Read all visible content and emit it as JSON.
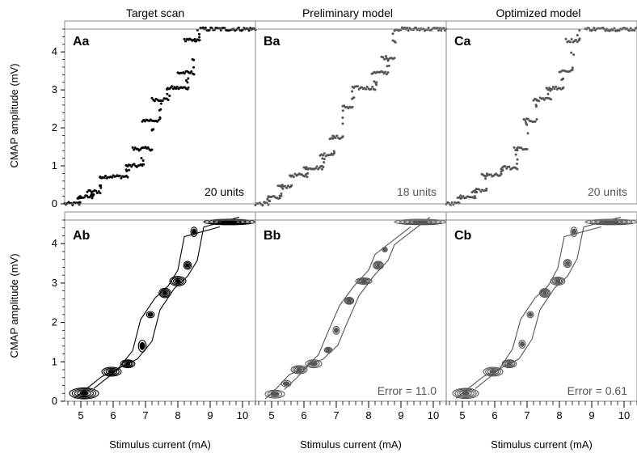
{
  "columns": [
    {
      "title": "Target scan",
      "scatter_label": "Aa",
      "contour_label": "Ab",
      "units_note": "20 units",
      "error_note": "",
      "color": "#000000"
    },
    {
      "title": "Preliminary model",
      "scatter_label": "Ba",
      "contour_label": "Bb",
      "units_note": "18 units",
      "error_note": "Error = 11.0",
      "color": "#555555"
    },
    {
      "title": "Optimized model",
      "scatter_label": "Ca",
      "contour_label": "Cb",
      "units_note": "20 units",
      "error_note": "Error = 0.61",
      "color": "#555555"
    }
  ],
  "axes": {
    "ylabel": "CMAP amplitude (mV)",
    "xlabel": "Stimulus current (mA)",
    "xlim": [
      4.5,
      10.4
    ],
    "ylim": [
      0,
      4.6
    ],
    "xticks": [
      5,
      6,
      7,
      8,
      9,
      10
    ],
    "yticks": [
      0,
      1,
      2,
      3,
      4
    ]
  },
  "chart_data": [
    {
      "type": "scatter",
      "panel": "Aa",
      "title": "Target scan",
      "xlabel": "",
      "ylabel": "CMAP amplitude (mV)",
      "xlim": [
        4.5,
        10.4
      ],
      "ylim": [
        0,
        4.6
      ],
      "steps": [
        {
          "x_start": 4.5,
          "x_end": 4.95,
          "y": 0.0
        },
        {
          "x_start": 4.9,
          "x_end": 5.35,
          "y": 0.18
        },
        {
          "x_start": 5.2,
          "x_end": 5.6,
          "y": 0.32
        },
        {
          "x_start": 5.6,
          "x_end": 6.45,
          "y": 0.72
        },
        {
          "x_start": 6.4,
          "x_end": 6.9,
          "y": 1.0
        },
        {
          "x_start": 6.6,
          "x_end": 7.2,
          "y": 1.45
        },
        {
          "x_start": 6.9,
          "x_end": 7.45,
          "y": 2.2
        },
        {
          "x_start": 7.2,
          "x_end": 7.7,
          "y": 2.75
        },
        {
          "x_start": 7.7,
          "x_end": 8.3,
          "y": 3.05
        },
        {
          "x_start": 8.0,
          "x_end": 8.5,
          "y": 3.45
        },
        {
          "x_start": 8.2,
          "x_end": 8.65,
          "y": 4.3
        },
        {
          "x_start": 8.7,
          "x_end": 10.4,
          "y": 4.6
        }
      ],
      "annotation": "20 units"
    },
    {
      "type": "scatter",
      "panel": "Ba",
      "title": "Preliminary model",
      "xlabel": "",
      "ylabel": "",
      "xlim": [
        4.5,
        10.4
      ],
      "ylim": [
        0,
        4.6
      ],
      "steps": [
        {
          "x_start": 4.5,
          "x_end": 4.9,
          "y": 0.0
        },
        {
          "x_start": 4.9,
          "x_end": 5.3,
          "y": 0.18
        },
        {
          "x_start": 5.2,
          "x_end": 5.6,
          "y": 0.45
        },
        {
          "x_start": 5.6,
          "x_end": 6.1,
          "y": 0.75
        },
        {
          "x_start": 6.0,
          "x_end": 6.6,
          "y": 0.95
        },
        {
          "x_start": 6.5,
          "x_end": 6.9,
          "y": 1.3
        },
        {
          "x_start": 6.8,
          "x_end": 7.2,
          "y": 1.75
        },
        {
          "x_start": 7.2,
          "x_end": 7.5,
          "y": 2.55
        },
        {
          "x_start": 7.5,
          "x_end": 8.2,
          "y": 3.05
        },
        {
          "x_start": 8.1,
          "x_end": 8.6,
          "y": 3.45
        },
        {
          "x_start": 8.4,
          "x_end": 8.8,
          "y": 3.85
        },
        {
          "x_start": 8.8,
          "x_end": 10.4,
          "y": 4.6
        }
      ],
      "annotation": "18 units"
    },
    {
      "type": "scatter",
      "panel": "Ca",
      "title": "Optimized model",
      "xlabel": "",
      "ylabel": "",
      "xlim": [
        4.5,
        10.4
      ],
      "ylim": [
        0,
        4.6
      ],
      "steps": [
        {
          "x_start": 4.5,
          "x_end": 4.9,
          "y": 0.0
        },
        {
          "x_start": 4.9,
          "x_end": 5.4,
          "y": 0.18
        },
        {
          "x_start": 5.3,
          "x_end": 5.7,
          "y": 0.35
        },
        {
          "x_start": 5.6,
          "x_end": 6.2,
          "y": 0.75
        },
        {
          "x_start": 6.2,
          "x_end": 6.7,
          "y": 0.95
        },
        {
          "x_start": 6.6,
          "x_end": 7.0,
          "y": 1.45
        },
        {
          "x_start": 6.9,
          "x_end": 7.3,
          "y": 2.2
        },
        {
          "x_start": 7.2,
          "x_end": 7.7,
          "y": 2.75
        },
        {
          "x_start": 7.6,
          "x_end": 8.1,
          "y": 3.05
        },
        {
          "x_start": 8.0,
          "x_end": 8.4,
          "y": 3.5
        },
        {
          "x_start": 8.2,
          "x_end": 8.6,
          "y": 4.3
        },
        {
          "x_start": 8.8,
          "x_end": 10.4,
          "y": 4.6
        }
      ],
      "annotation": "20 units"
    },
    {
      "type": "heatmap",
      "panel": "Ab",
      "xlabel": "Stimulus current (mA)",
      "ylabel": "CMAP amplitude (mV)",
      "xlim": [
        4.5,
        10.4
      ],
      "ylim": [
        0,
        4.6
      ],
      "density_peaks": [
        {
          "x": 5.1,
          "y": 0.2,
          "rx": 0.45,
          "ry": 0.14,
          "level": 5
        },
        {
          "x": 5.95,
          "y": 0.75,
          "rx": 0.3,
          "ry": 0.11,
          "level": 4
        },
        {
          "x": 6.45,
          "y": 0.95,
          "rx": 0.22,
          "ry": 0.1,
          "level": 4
        },
        {
          "x": 6.9,
          "y": 1.4,
          "rx": 0.12,
          "ry": 0.15,
          "level": 2
        },
        {
          "x": 7.15,
          "y": 2.2,
          "rx": 0.12,
          "ry": 0.08,
          "level": 2
        },
        {
          "x": 7.6,
          "y": 2.75,
          "rx": 0.18,
          "ry": 0.12,
          "level": 4
        },
        {
          "x": 8.0,
          "y": 3.05,
          "rx": 0.25,
          "ry": 0.12,
          "level": 4
        },
        {
          "x": 8.3,
          "y": 3.45,
          "rx": 0.12,
          "ry": 0.1,
          "level": 3
        },
        {
          "x": 8.5,
          "y": 4.3,
          "rx": 0.1,
          "ry": 0.12,
          "level": 2
        },
        {
          "x": 9.6,
          "y": 4.55,
          "rx": 0.8,
          "ry": 0.07,
          "level": 5
        }
      ]
    },
    {
      "type": "heatmap",
      "panel": "Bb",
      "xlabel": "Stimulus current (mA)",
      "ylabel": "",
      "xlim": [
        4.5,
        10.4
      ],
      "ylim": [
        0,
        4.6
      ],
      "density_peaks": [
        {
          "x": 5.1,
          "y": 0.18,
          "rx": 0.3,
          "ry": 0.1,
          "level": 3
        },
        {
          "x": 5.45,
          "y": 0.45,
          "rx": 0.15,
          "ry": 0.08,
          "level": 2
        },
        {
          "x": 5.85,
          "y": 0.8,
          "rx": 0.25,
          "ry": 0.1,
          "level": 4
        },
        {
          "x": 6.3,
          "y": 0.95,
          "rx": 0.25,
          "ry": 0.1,
          "level": 3
        },
        {
          "x": 6.75,
          "y": 1.3,
          "rx": 0.12,
          "ry": 0.07,
          "level": 3
        },
        {
          "x": 7.0,
          "y": 1.8,
          "rx": 0.1,
          "ry": 0.1,
          "level": 2
        },
        {
          "x": 7.4,
          "y": 2.55,
          "rx": 0.14,
          "ry": 0.09,
          "level": 4
        },
        {
          "x": 7.85,
          "y": 3.05,
          "rx": 0.25,
          "ry": 0.08,
          "level": 4
        },
        {
          "x": 8.3,
          "y": 3.45,
          "rx": 0.16,
          "ry": 0.1,
          "level": 4
        },
        {
          "x": 8.5,
          "y": 3.85,
          "rx": 0.08,
          "ry": 0.06,
          "level": 2
        },
        {
          "x": 9.6,
          "y": 4.55,
          "rx": 0.8,
          "ry": 0.07,
          "level": 5
        }
      ],
      "annotation": "Error = 11.0"
    },
    {
      "type": "heatmap",
      "panel": "Cb",
      "xlabel": "Stimulus current (mA)",
      "ylabel": "",
      "xlim": [
        4.5,
        10.4
      ],
      "ylim": [
        0,
        4.6
      ],
      "density_peaks": [
        {
          "x": 5.1,
          "y": 0.2,
          "rx": 0.4,
          "ry": 0.13,
          "level": 5
        },
        {
          "x": 5.95,
          "y": 0.75,
          "rx": 0.3,
          "ry": 0.11,
          "level": 4
        },
        {
          "x": 6.45,
          "y": 0.95,
          "rx": 0.22,
          "ry": 0.1,
          "level": 4
        },
        {
          "x": 6.85,
          "y": 1.45,
          "rx": 0.1,
          "ry": 0.1,
          "level": 2
        },
        {
          "x": 7.1,
          "y": 2.2,
          "rx": 0.1,
          "ry": 0.08,
          "level": 2
        },
        {
          "x": 7.55,
          "y": 2.75,
          "rx": 0.16,
          "ry": 0.11,
          "level": 4
        },
        {
          "x": 7.95,
          "y": 3.05,
          "rx": 0.22,
          "ry": 0.1,
          "level": 4
        },
        {
          "x": 8.25,
          "y": 3.5,
          "rx": 0.12,
          "ry": 0.1,
          "level": 3
        },
        {
          "x": 8.45,
          "y": 4.3,
          "rx": 0.1,
          "ry": 0.12,
          "level": 2
        },
        {
          "x": 9.6,
          "y": 4.55,
          "rx": 0.8,
          "ry": 0.07,
          "level": 5
        }
      ],
      "annotation": "Error = 0.61"
    }
  ]
}
